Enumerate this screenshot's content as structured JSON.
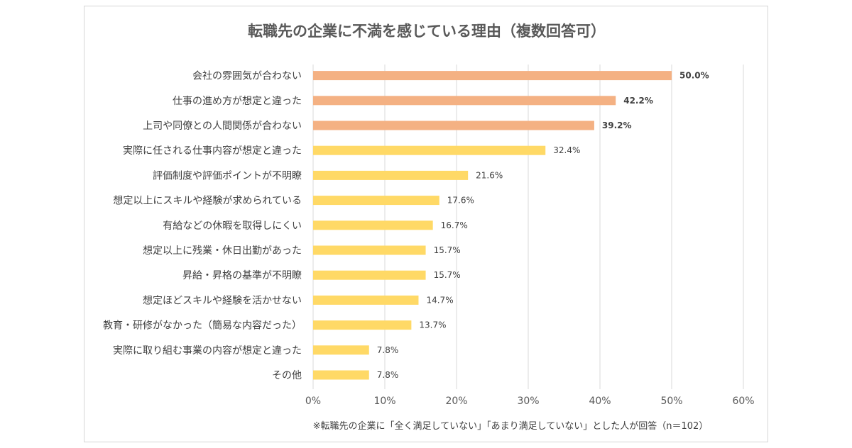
{
  "chart_data": {
    "type": "bar",
    "orientation": "horizontal",
    "title": "転職先の企業に不満を感じている理由（複数回答可）",
    "categories": [
      "会社の雰囲気が合わない",
      "仕事の進め方が想定と違った",
      "上司や同僚との人間関係が合わない",
      "実際に任される仕事内容が想定と違った",
      "評価制度や評価ポイントが不明瞭",
      "想定以上にスキルや経験が求められている",
      "有給などの休暇を取得しにくい",
      "想定以上に残業・休日出勤があった",
      "昇給・昇格の基準が不明瞭",
      "想定ほどスキルや経験を活かせない",
      "教育・研修がなかった（簡易な内容だった）",
      "実際に取り組む事業の内容が想定と違った",
      "その他"
    ],
    "values": [
      50.0,
      42.2,
      39.2,
      32.4,
      21.6,
      17.6,
      16.7,
      15.7,
      15.7,
      14.7,
      13.7,
      7.8,
      7.8
    ],
    "value_labels": [
      "50.0%",
      "42.2%",
      "39.2%",
      "32.4%",
      "21.6%",
      "17.6%",
      "16.7%",
      "15.7%",
      "15.7%",
      "14.7%",
      "13.7%",
      "7.8%",
      "7.8%"
    ],
    "highlight_count": 3,
    "xlim": [
      0,
      60
    ],
    "x_ticks": [
      "0%",
      "10%",
      "20%",
      "30%",
      "40%",
      "50%",
      "60%"
    ],
    "x_tick_values": [
      0,
      10,
      20,
      30,
      40,
      50,
      60
    ],
    "grid": true,
    "xlabel": "",
    "ylabel": "",
    "colors": {
      "highlight": "#f4b183",
      "normal": "#ffd966"
    },
    "footnote": "※転職先の企業に「全く満足していない」「あまり満足していない」とした人が回答（n＝102）"
  }
}
